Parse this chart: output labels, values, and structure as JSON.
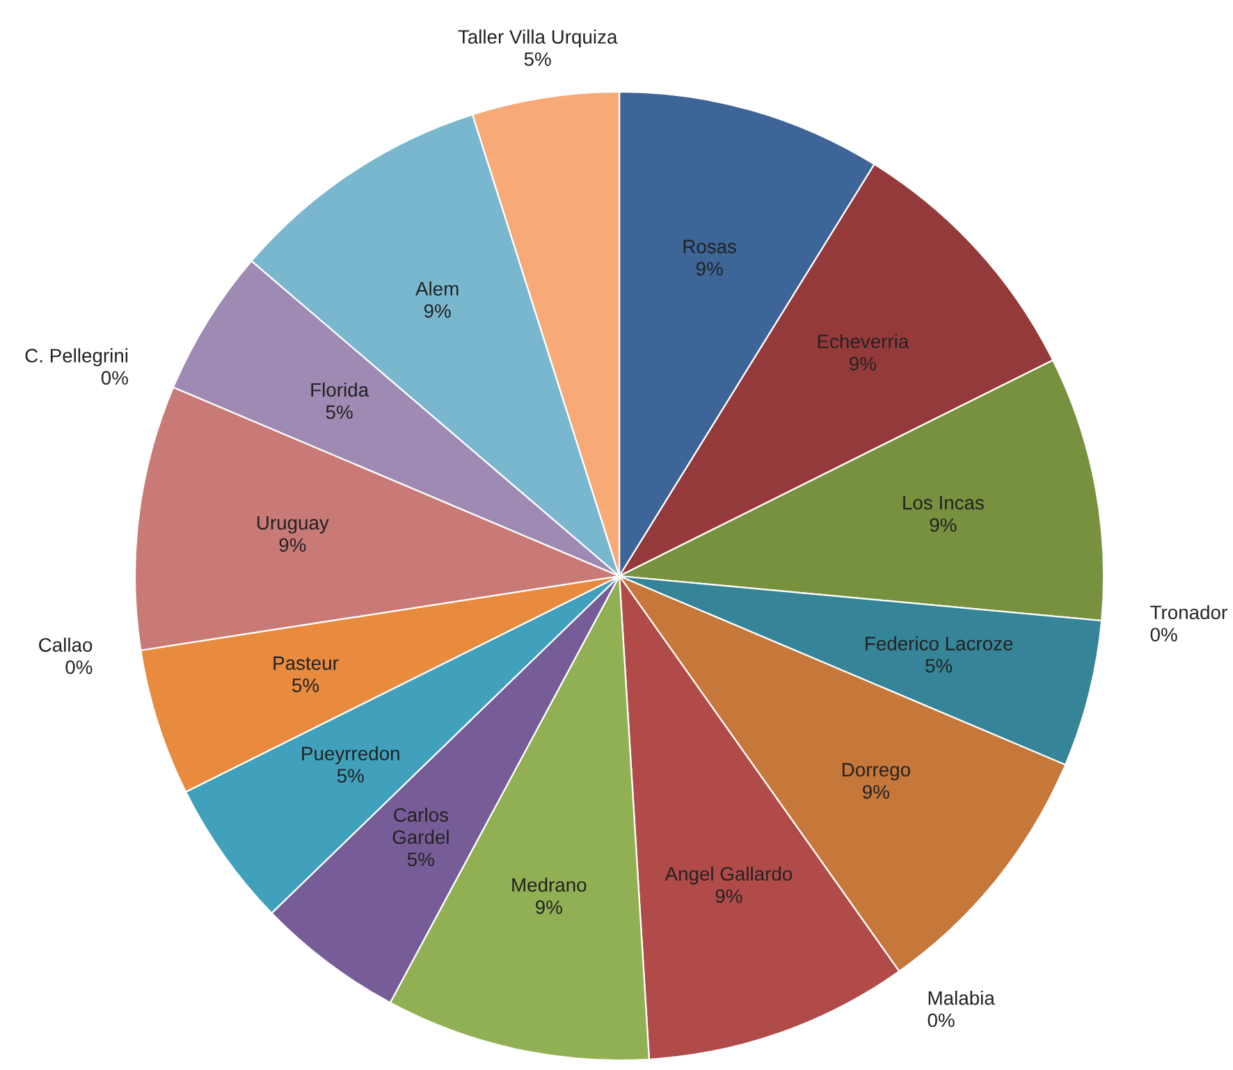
{
  "chart_data": {
    "type": "pie",
    "categories": [
      "Rosas",
      "Echeverria",
      "Los Incas",
      "Tronador",
      "Federico Lacroze",
      "Dorrego",
      "Malabia",
      "Angel Gallardo",
      "Medrano",
      "Carlos Gardel",
      "Pueyrredon",
      "Pasteur",
      "Callao",
      "Uruguay",
      "C. Pellegrini",
      "Florida",
      "Alem",
      "Taller Villa Urquiza"
    ],
    "values": [
      9,
      9,
      9,
      0,
      5,
      9,
      0,
      9,
      9,
      5,
      5,
      5,
      0,
      9,
      0,
      5,
      9,
      5
    ],
    "value_labels": [
      "9%",
      "9%",
      "9%",
      "0%",
      "5%",
      "9%",
      "0%",
      "9%",
      "9%",
      "5%",
      "5%",
      "5%",
      "0%",
      "9%",
      "0%",
      "5%",
      "9%",
      "5%"
    ],
    "colors": [
      "#3d6597",
      "#953a3b",
      "#77913f",
      "#4bacc6",
      "#358497",
      "#c6773a",
      "#8064a2",
      "#b14b4a",
      "#91b053",
      "#775d97",
      "#41a1bc",
      "#e88b3f",
      "#c0504d",
      "#c97a76",
      "#4f81bd",
      "#9e8ab3",
      "#79b7ce",
      "#f7aa78"
    ],
    "legend": false
  }
}
